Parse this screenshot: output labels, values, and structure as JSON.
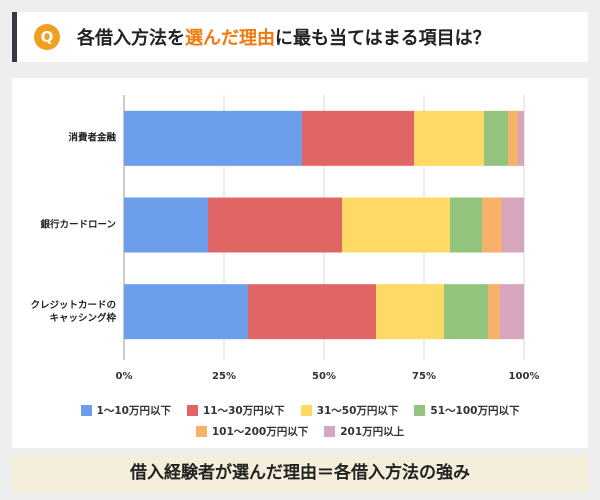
{
  "header": {
    "icon": "Q",
    "title_parts": [
      "各借入方法を",
      "選んだ理由",
      "に最も当てはまる項目は？"
    ]
  },
  "chart_data": {
    "type": "stacked-bar",
    "orientation": "horizontal",
    "categories": [
      "消費者金融",
      "銀行カードローン",
      "クレジットカードの\nキャッシング枠"
    ],
    "series": [
      {
        "name": "1～10万円以下",
        "color": "#6d9eeb",
        "values": [
          44.5,
          21,
          31
        ]
      },
      {
        "name": "11～30万円以下",
        "color": "#e06666",
        "values": [
          28,
          33.5,
          32
        ]
      },
      {
        "name": "31～50万円以下",
        "color": "#ffd966",
        "values": [
          17.5,
          27,
          17
        ]
      },
      {
        "name": "51～100万円以下",
        "color": "#93c47d",
        "values": [
          6,
          8,
          11
        ]
      },
      {
        "name": "101～200万円以下",
        "color": "#f6b26b",
        "values": [
          2.5,
          5,
          3
        ]
      },
      {
        "name": "201万円以上",
        "color": "#d5a6bd",
        "values": [
          1.5,
          5.5,
          6
        ]
      }
    ],
    "xlim": [
      0,
      100
    ],
    "xticks": [
      {
        "value": 0,
        "label": "0%"
      },
      {
        "value": 25,
        "label": "25%"
      },
      {
        "value": 50,
        "label": "50%"
      },
      {
        "value": 75,
        "label": "75%"
      },
      {
        "value": 100,
        "label": "100%"
      }
    ],
    "grid": true
  },
  "banner": "借入経験者が選んだ理由＝各借入方法の強み"
}
